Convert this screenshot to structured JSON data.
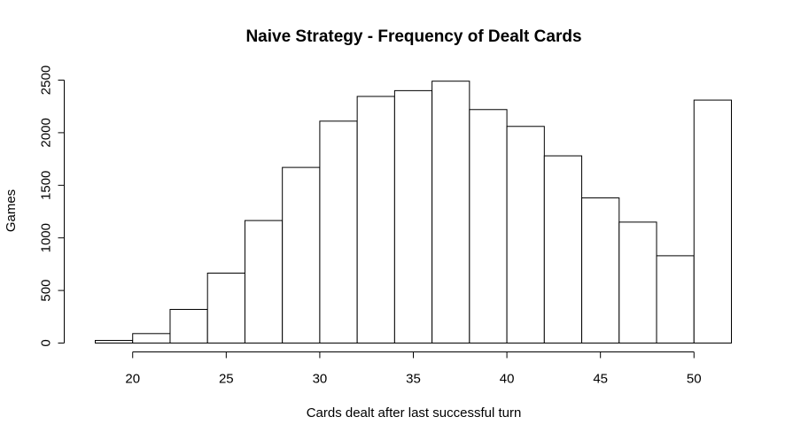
{
  "chart_data": {
    "type": "bar",
    "title": "Naive Strategy - Frequency of Dealt Cards",
    "xlabel": "Cards dealt after last successful turn",
    "ylabel": "Games",
    "xlim": [
      18,
      52
    ],
    "ylim": [
      0,
      2500
    ],
    "x_ticks": [
      20,
      25,
      30,
      35,
      40,
      45,
      50
    ],
    "y_ticks": [
      0,
      500,
      1000,
      1500,
      2000,
      2500
    ],
    "grid": false,
    "bins": [
      {
        "start": 18,
        "end": 20,
        "value": 25
      },
      {
        "start": 20,
        "end": 22,
        "value": 90
      },
      {
        "start": 22,
        "end": 24,
        "value": 320
      },
      {
        "start": 24,
        "end": 26,
        "value": 665
      },
      {
        "start": 26,
        "end": 28,
        "value": 1165
      },
      {
        "start": 28,
        "end": 30,
        "value": 1670
      },
      {
        "start": 30,
        "end": 32,
        "value": 2110
      },
      {
        "start": 32,
        "end": 34,
        "value": 2345
      },
      {
        "start": 34,
        "end": 36,
        "value": 2400
      },
      {
        "start": 36,
        "end": 38,
        "value": 2490
      },
      {
        "start": 38,
        "end": 40,
        "value": 2220
      },
      {
        "start": 40,
        "end": 42,
        "value": 2060
      },
      {
        "start": 42,
        "end": 44,
        "value": 1780
      },
      {
        "start": 44,
        "end": 46,
        "value": 1380
      },
      {
        "start": 46,
        "end": 48,
        "value": 1150
      },
      {
        "start": 48,
        "end": 50,
        "value": 830
      },
      {
        "start": 50,
        "end": 52,
        "value": 2310
      }
    ]
  }
}
